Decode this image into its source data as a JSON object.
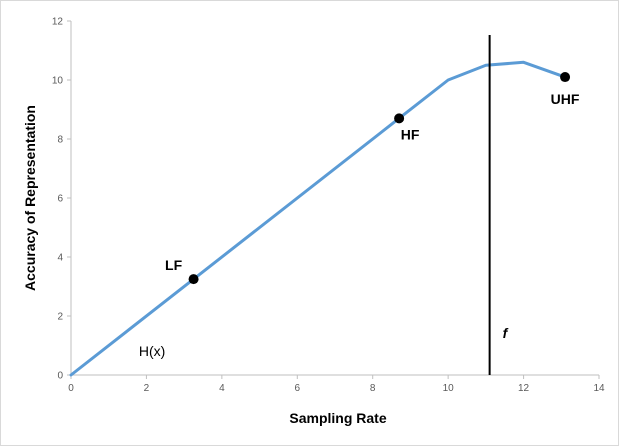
{
  "chart_data": {
    "type": "line",
    "xlabel": "Sampling Rate",
    "ylabel": "Accuracy of Representation",
    "xlim": [
      0,
      14
    ],
    "ylim": [
      0,
      12
    ],
    "x_ticks": [
      0,
      2,
      4,
      6,
      8,
      10,
      12,
      14
    ],
    "y_ticks": [
      0,
      2,
      4,
      6,
      8,
      10,
      12
    ],
    "grid": false,
    "series": [
      {
        "x": [
          0,
          8.7,
          10,
          11,
          12,
          13.1
        ],
        "y": [
          0,
          8.7,
          10,
          10.5,
          10.6,
          10.1
        ],
        "color": "#5b9bd5"
      }
    ],
    "points": [
      {
        "label": "LF",
        "x": 3.25,
        "y": 3.25
      },
      {
        "label": "HF",
        "x": 8.7,
        "y": 8.7
      },
      {
        "label": "UHF",
        "x": 13.1,
        "y": 10.1
      }
    ],
    "vertical_line": {
      "x": 11.1,
      "label": "f"
    },
    "annotations": [
      {
        "text": "H(x)",
        "x": 1.8,
        "y": 0.65
      }
    ]
  }
}
